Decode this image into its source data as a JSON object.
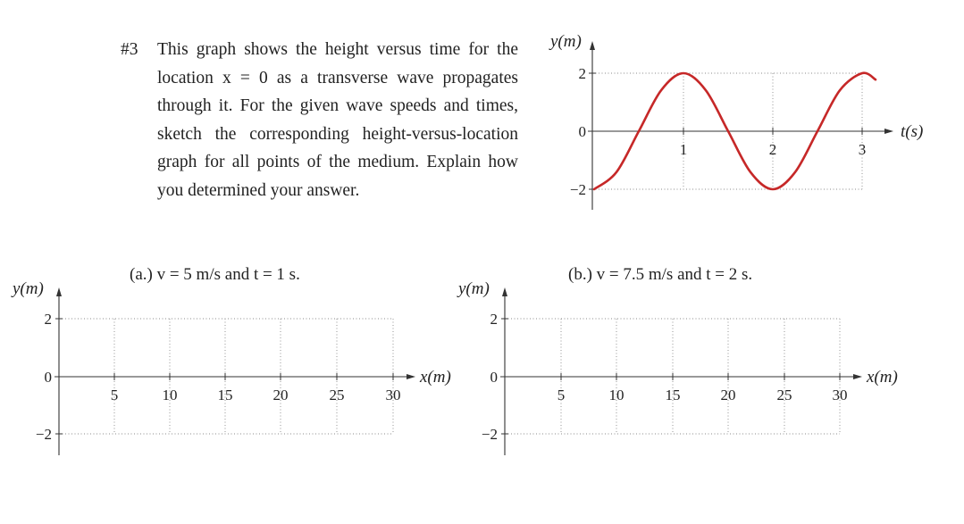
{
  "problem": {
    "number": "#3",
    "text": "This graph shows the height versus time for the location x = 0 as a transverse wave propagates through it. For the given wave speeds and times, sketch the corresponding height-versus-location graph for all points of the medium. Explain how you determined your answer."
  },
  "chart_data": [
    {
      "type": "line",
      "ylabel": "y(m)",
      "xlabel": "t(s)",
      "xlim": [
        -0.05,
        3.35
      ],
      "ylim": [
        -2.3,
        2.6
      ],
      "x_ticks": [
        "1",
        "2",
        "3"
      ],
      "y_ticks": [
        "-2",
        "0",
        "2"
      ],
      "grid": "dotted",
      "series": [
        {
          "color": "#c62828",
          "x": [
            0,
            0.25,
            0.5,
            0.75,
            1,
            1.25,
            1.5,
            1.75,
            2,
            2.25,
            2.5,
            2.75,
            3,
            3.15
          ],
          "y": [
            -2,
            -1.41,
            0,
            1.41,
            2,
            1.41,
            0,
            -1.41,
            -2,
            -1.41,
            0,
            1.41,
            2,
            1.78
          ]
        }
      ]
    },
    {
      "type": "line",
      "caption": "(a.) v = 5 m/s and t = 1 s.",
      "ylabel": "y(m)",
      "xlabel": "x(m)",
      "xlim": [
        0,
        30
      ],
      "ylim": [
        -2,
        2
      ],
      "x_ticks": [
        "5",
        "10",
        "15",
        "20",
        "25",
        "30"
      ],
      "y_ticks": [
        "-2",
        "0",
        "2"
      ],
      "grid": "dotted",
      "series": []
    },
    {
      "type": "line",
      "caption": "(b.) v = 7.5 m/s and t = 2 s.",
      "ylabel": "y(m)",
      "xlabel": "x(m)",
      "xlim": [
        0,
        30
      ],
      "ylim": [
        -2,
        2
      ],
      "x_ticks": [
        "5",
        "10",
        "15",
        "20",
        "25",
        "30"
      ],
      "y_ticks": [
        "-2",
        "0",
        "2"
      ],
      "grid": "dotted",
      "series": []
    }
  ]
}
